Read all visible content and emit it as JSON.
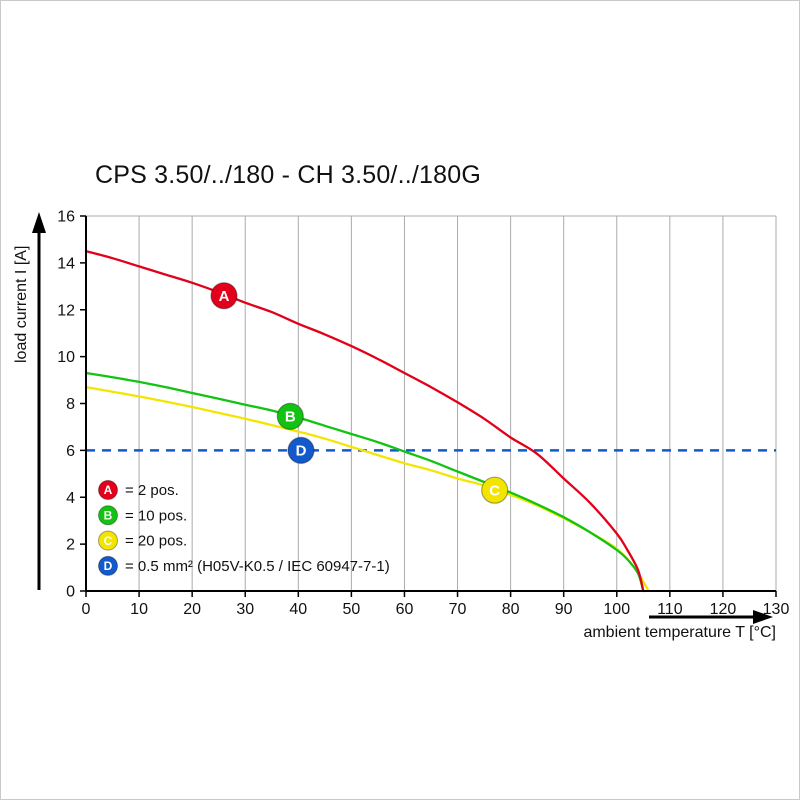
{
  "chart_data": {
    "type": "line",
    "title": "CPS 3.50/../180 - CH 3.50/../180G",
    "xlabel": "ambient temperature T [°C]",
    "ylabel": "load current I [A]",
    "xlim": [
      0,
      130
    ],
    "ylim": [
      0,
      16
    ],
    "xticks": [
      0,
      10,
      20,
      30,
      40,
      50,
      60,
      70,
      80,
      90,
      100,
      110,
      120,
      130
    ],
    "yticks": [
      0,
      2,
      4,
      6,
      8,
      10,
      12,
      14,
      16
    ],
    "grid": "vertical gridlines at every 10 °C plus top frame line; legend lower-left inside plot",
    "colors": {
      "grid": "#ababab",
      "axis": "#000000",
      "red": "#e2001a",
      "green": "#12c312",
      "yellow": "#f2e600",
      "blue": "#1259cc"
    },
    "series": [
      {
        "name": "A",
        "legend_label": "= 2 pos.",
        "color": "#e2001a",
        "marker_point": [
          26,
          12.6
        ],
        "points": [
          [
            0,
            14.5
          ],
          [
            5,
            14.2
          ],
          [
            10,
            13.85
          ],
          [
            15,
            13.5
          ],
          [
            20,
            13.15
          ],
          [
            25,
            12.75
          ],
          [
            30,
            12.3
          ],
          [
            35,
            11.9
          ],
          [
            40,
            11.4
          ],
          [
            45,
            10.95
          ],
          [
            50,
            10.45
          ],
          [
            55,
            9.9
          ],
          [
            60,
            9.3
          ],
          [
            65,
            8.7
          ],
          [
            70,
            8.05
          ],
          [
            75,
            7.35
          ],
          [
            80,
            6.55
          ],
          [
            85,
            5.85
          ],
          [
            90,
            4.8
          ],
          [
            95,
            3.75
          ],
          [
            100,
            2.45
          ],
          [
            102,
            1.75
          ],
          [
            104,
            0.9
          ],
          [
            105,
            0
          ]
        ]
      },
      {
        "name": "B",
        "legend_label": "= 10 pos.",
        "color": "#12c312",
        "marker_point": [
          38.5,
          7.45
        ],
        "points": [
          [
            0,
            9.3
          ],
          [
            5,
            9.12
          ],
          [
            10,
            8.92
          ],
          [
            15,
            8.7
          ],
          [
            20,
            8.45
          ],
          [
            25,
            8.2
          ],
          [
            30,
            7.95
          ],
          [
            35,
            7.7
          ],
          [
            40,
            7.4
          ],
          [
            45,
            7.05
          ],
          [
            50,
            6.7
          ],
          [
            55,
            6.35
          ],
          [
            60,
            5.95
          ],
          [
            65,
            5.55
          ],
          [
            70,
            5.1
          ],
          [
            75,
            4.65
          ],
          [
            80,
            4.2
          ],
          [
            85,
            3.7
          ],
          [
            90,
            3.15
          ],
          [
            95,
            2.5
          ],
          [
            100,
            1.75
          ],
          [
            102,
            1.35
          ],
          [
            104,
            0.75
          ],
          [
            105,
            0
          ]
        ]
      },
      {
        "name": "C",
        "legend_label": "= 20 pos.",
        "color": "#f2e600",
        "marker_point": [
          77,
          4.3
        ],
        "points": [
          [
            0,
            8.7
          ],
          [
            5,
            8.5
          ],
          [
            10,
            8.3
          ],
          [
            15,
            8.08
          ],
          [
            20,
            7.85
          ],
          [
            25,
            7.6
          ],
          [
            30,
            7.35
          ],
          [
            35,
            7.08
          ],
          [
            40,
            6.8
          ],
          [
            45,
            6.5
          ],
          [
            50,
            6.15
          ],
          [
            55,
            5.8
          ],
          [
            60,
            5.45
          ],
          [
            65,
            5.15
          ],
          [
            70,
            4.8
          ],
          [
            75,
            4.5
          ],
          [
            80,
            4.1
          ],
          [
            85,
            3.65
          ],
          [
            90,
            3.1
          ],
          [
            95,
            2.5
          ],
          [
            100,
            1.8
          ],
          [
            103,
            1.1
          ],
          [
            105,
            0.4
          ],
          [
            106,
            0
          ]
        ]
      }
    ],
    "reference_line": {
      "name": "D",
      "legend_label": "= 0.5 mm² (H05V-K0.5 / IEC 60947-7-1)",
      "color": "#1259cc",
      "style": "dashed",
      "y": 6,
      "marker_point": [
        40.5,
        6
      ]
    }
  }
}
